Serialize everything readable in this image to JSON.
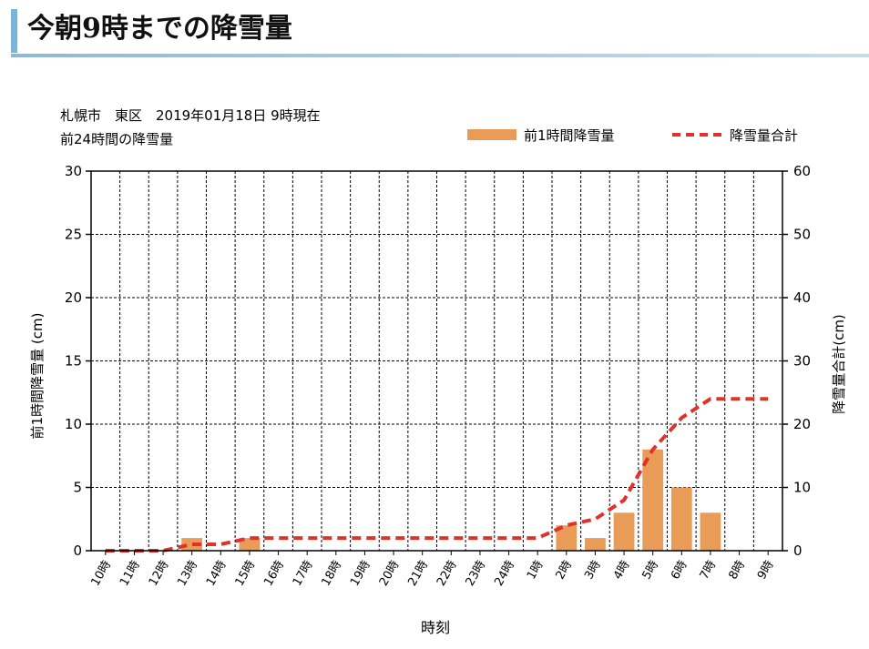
{
  "header": {
    "title": "今朝9時までの降雪量"
  },
  "chart_data": {
    "type": "bar+line",
    "title_line1": "札幌市　東区　2019年01月18日 9時現在",
    "title_line2": "前24時間の降雪量",
    "xlabel": "時刻",
    "ylabel_left": "前1時間降雪量 (cm)",
    "ylabel_right": "降雪量合計(cm)",
    "ylim_left": [
      0,
      30
    ],
    "ylim_right": [
      0,
      60
    ],
    "yticks_left": [
      "0",
      "5",
      "10",
      "15",
      "20",
      "25",
      "30"
    ],
    "yticks_right": [
      "0",
      "10",
      "20",
      "30",
      "40",
      "50",
      "60"
    ],
    "grid": true,
    "legend_position": "top-right",
    "categories": [
      "10時",
      "11時",
      "12時",
      "13時",
      "14時",
      "15時",
      "16時",
      "17時",
      "18時",
      "19時",
      "20時",
      "21時",
      "22時",
      "23時",
      "24時",
      "1時",
      "2時",
      "3時",
      "4時",
      "5時",
      "6時",
      "7時",
      "8時",
      "9時"
    ],
    "series": [
      {
        "name": "前1時間降雪量",
        "kind": "bar",
        "axis": "left",
        "color": "#e89c58",
        "values": [
          0,
          0,
          0,
          1,
          0,
          1,
          0,
          0,
          0,
          0,
          0,
          0,
          0,
          0,
          0,
          0,
          2,
          1,
          3,
          8,
          5,
          3,
          0,
          0
        ]
      },
      {
        "name": "降雪量合計",
        "kind": "line",
        "axis": "right",
        "color": "#e0322a",
        "values": [
          0,
          0,
          0,
          1,
          1,
          2,
          2,
          2,
          2,
          2,
          2,
          2,
          2,
          2,
          2,
          2,
          4,
          5,
          8,
          16,
          21,
          24,
          24,
          24
        ]
      }
    ]
  }
}
